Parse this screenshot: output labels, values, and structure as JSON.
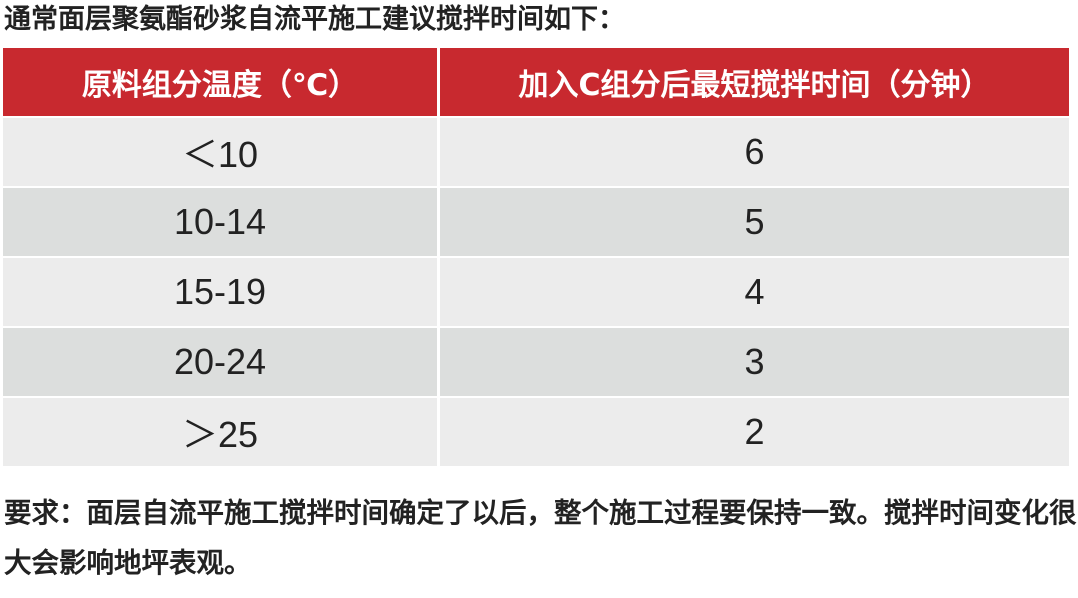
{
  "title": "通常面层聚氨酯砂浆自流平施工建议搅拌时间如下：",
  "table": {
    "headers": [
      "原料组分温度（℃）",
      "加入C组分后最短搅拌时间（分钟）"
    ],
    "rows": [
      [
        "＜10",
        "6"
      ],
      [
        "10-14",
        "5"
      ],
      [
        "15-19",
        "4"
      ],
      [
        "20-24",
        "3"
      ],
      [
        "＞25",
        "2"
      ]
    ]
  },
  "note": "要求：面层自流平施工搅拌时间确定了以后，整个施工过程要保持一致。搅拌时间变化很大会影响地坪表观。",
  "colors": {
    "header_bg": "#c8292f",
    "row_light": "#ececec",
    "row_dark": "#dcdedd"
  }
}
